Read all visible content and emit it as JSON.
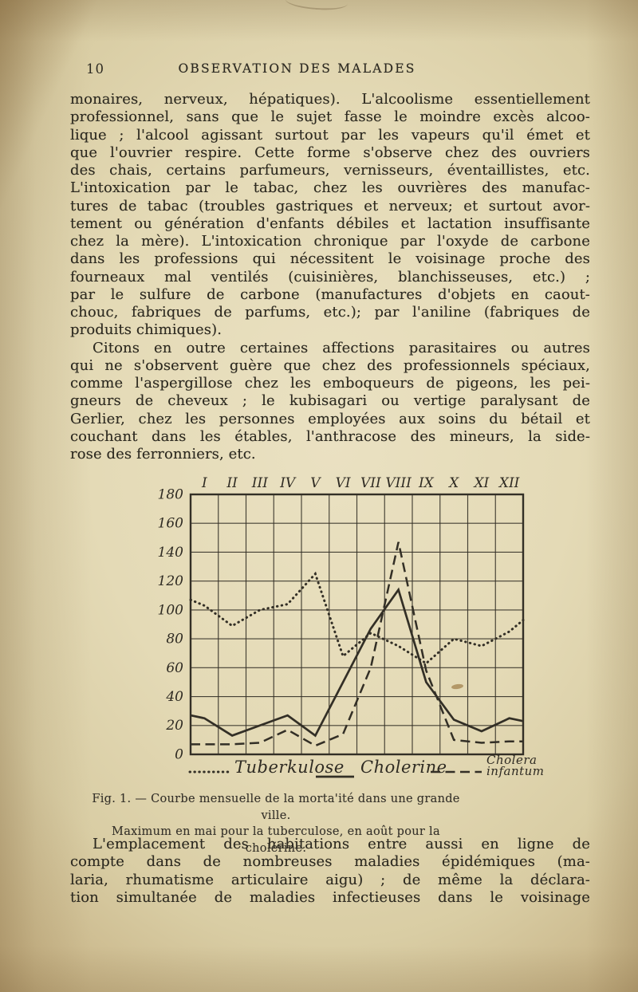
{
  "page": {
    "number": "10",
    "header": "OBSERVATION DES MALADES"
  },
  "colors": {
    "paper": "#e4dab6",
    "text_ink": "#2c2920",
    "chart_ink": "#332f26"
  },
  "paragraphs": [
    {
      "lines": [
        "monaires, nerveux, hépatiques). L'alcoolisme essentiellement",
        "professionnel, sans que le sujet fasse le moindre excès alcoo-",
        "lique ; l'alcool agissant surtout par les vapeurs qu'il émet et",
        "que l'ouvrier respire. Cette forme s'observe chez des ouvriers",
        "des chais, certains parfumeurs, vernisseurs, éventaillistes, etc.",
        "L'intoxication par le tabac, chez les ouvrières des manufac-",
        "tures de tabac (troubles gastriques et nerveux; et surtout avor-",
        "tement ou génération d'enfants débiles et lactation insuffisante",
        "chez la mère). L'intoxication chronique par l'oxyde de carbone",
        "dans les professions qui nécessitent le voisinage proche des",
        "fourneaux mal ventilés (cuisinières, blanchisseuses, etc.) ;",
        "par le sulfure de carbone (manufactures d'objets en caout-",
        "chouc, fabriques de parfums, etc.); par l'aniline (fabriques de",
        "produits chimiques)."
      ]
    },
    {
      "lines": [
        "Citons en outre certaines affections parasitaires ou autres",
        "qui ne s'observent guère que chez des professionnels spéciaux,",
        "comme l'aspergillose chez les emboqueurs de pigeons, les pei-",
        "gneurs de cheveux ; le kubisagari ou vertige paralysant de",
        "Gerlier, chez les personnes employées aux soins du bétail et",
        "couchant dans les étables, l'anthracose des mineurs, la side-",
        "rose des ferronniers, etc."
      ]
    },
    {
      "lines": [
        "L'emplacement des habitations entre aussi en ligne de",
        "compte dans de nombreuses maladies épidémiques (ma-",
        "laria, rhumatisme articulaire aigu) ; de même la déclara-",
        "tion simultanée de maladies infectieuses dans le voisinage"
      ]
    }
  ],
  "figure": {
    "caption": [
      "Fig. 1. — Courbe mensuelle de la morta'ité dans une grande ville.",
      "Maximum en mai pour la tuberculose, en août pour la cholérine."
    ],
    "legend": [
      {
        "label": "Tuberkulose",
        "line_style": "dotted"
      },
      {
        "label": "Cholerine",
        "line_style": "solid"
      },
      {
        "label": "Cholera\ninfantum",
        "line_style": "dashed"
      }
    ],
    "chart_data": {
      "type": "line",
      "title": "Courbe mensuelle de la mortalité dans une grande ville",
      "grid": true,
      "x_axis": {
        "position": "top",
        "labels": [
          "I",
          "II",
          "III",
          "IV",
          "V",
          "VI",
          "VII",
          "VIII",
          "IX",
          "X",
          "XI",
          "XII"
        ]
      },
      "y_axis": {
        "ticks": [
          180,
          160,
          140,
          120,
          100,
          80,
          60,
          40,
          20,
          0
        ],
        "range": [
          0,
          180
        ]
      },
      "x_positions": [
        0,
        0.5,
        1.5,
        2.5,
        3.5,
        4.5,
        5.5,
        6.5,
        7.5,
        8.5,
        9.5,
        10.5,
        11.5,
        12
      ],
      "series": [
        {
          "name": "Tuberkulose",
          "line_style": "dotted",
          "values": [
            107,
            103,
            89,
            100,
            104,
            125,
            68,
            84,
            75,
            63,
            80,
            75,
            85,
            93
          ]
        },
        {
          "name": "Cholerine",
          "line_style": "solid",
          "values": [
            27,
            25,
            13,
            20,
            27,
            13,
            50,
            87,
            114,
            50,
            24,
            16,
            25,
            23
          ]
        },
        {
          "name": "Cholera infantum",
          "line_style": "dashed",
          "values": [
            7,
            7,
            7,
            8,
            17,
            6,
            14,
            60,
            147,
            58,
            10,
            8,
            9,
            9
          ]
        }
      ]
    }
  }
}
